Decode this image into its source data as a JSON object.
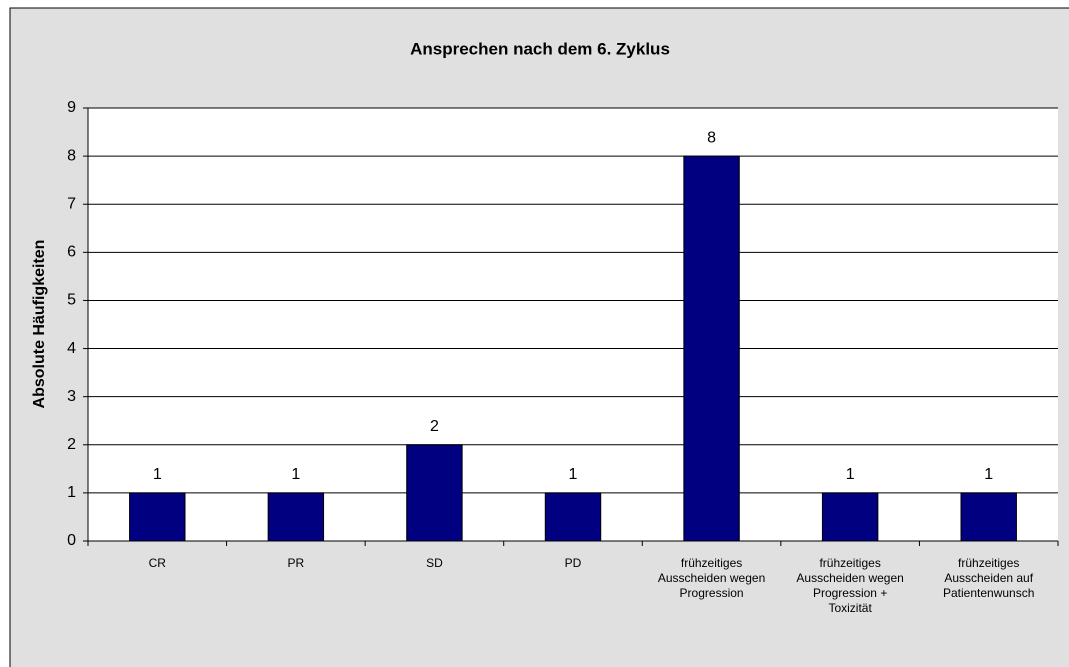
{
  "chart_data": {
    "type": "bar",
    "title": "Ansprechen nach dem 6. Zyklus",
    "y_label": "Absolute Häufigkeiten",
    "categories": [
      "CR",
      "PR",
      "SD",
      "PD",
      "frühzeitiges Ausscheiden wegen Progression",
      "frühzeitiges Ausscheiden wegen Progression + Toxizität",
      "frühzeitiges Ausscheiden auf Patientenwunsch"
    ],
    "values": [
      1,
      1,
      2,
      1,
      8,
      1,
      1
    ],
    "color": "#000080",
    "ylim": [
      0,
      9
    ],
    "yticks": [
      0,
      1,
      2,
      3,
      4,
      5,
      6,
      7,
      8,
      9
    ],
    "grid": true
  }
}
